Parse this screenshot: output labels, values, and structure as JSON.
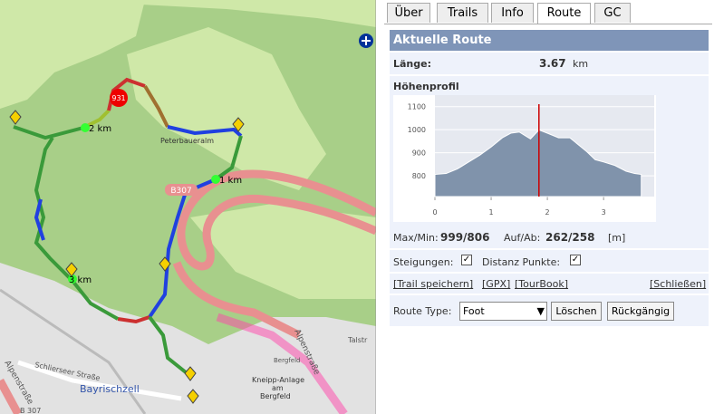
{
  "tabs": [
    "Über",
    "Trails",
    "Info",
    "Route",
    "GC"
  ],
  "panel": {
    "title": "Aktuelle Route",
    "length_label": "Länge:",
    "length_value": "3.67",
    "length_unit": "km",
    "profile_label": "Höhenprofil",
    "stats": {
      "maxmin_label": "Max/Min:",
      "maxmin_value": "999/806",
      "aufab_label": "Auf/Ab:",
      "aufab_value": "262/258",
      "unit": "[m]"
    },
    "checkboxes": [
      "Steigungen:",
      "Distanz Punkte:"
    ],
    "links": [
      "[Trail speichern]",
      "[GPX]",
      "[TourBook]",
      "[Schließen]"
    ],
    "route_type_label": "Route Type:",
    "route_type_value": "Foot",
    "buttons": [
      "Löschen",
      "Rückgängig"
    ]
  },
  "map": {
    "labels": [
      "2 km",
      "1 km",
      "3 km",
      "931",
      "Peterbaueralm",
      "B307",
      "Bayrischzell",
      "Alpenstraße",
      "Schlierseer Straße",
      "Kneipp-Anlage",
      "am",
      "Bergfeld",
      "Bergfeld",
      "Alpenstraße",
      "Talstr",
      "B 307"
    ]
  },
  "chart_data": {
    "type": "area",
    "x": [
      0,
      0.2,
      0.4,
      0.6,
      0.8,
      1.0,
      1.2,
      1.35,
      1.5,
      1.6,
      1.7,
      1.85,
      2.0,
      2.2,
      2.4,
      2.55,
      2.7,
      2.85,
      3.0,
      3.2,
      3.4,
      3.55,
      3.67
    ],
    "series": [
      {
        "color": "#8093ab",
        "values": [
          806,
          810,
          830,
          860,
          890,
          925,
          965,
          985,
          990,
          975,
          960,
          999,
          985,
          965,
          965,
          935,
          905,
          870,
          860,
          845,
          820,
          810,
          806
        ]
      }
    ],
    "marker_x": 1.85,
    "marker_color": "#cc0000",
    "xlim": [
      0,
      3.9
    ],
    "ylim": [
      710,
      1150
    ],
    "xticks": [
      0,
      1,
      2,
      3
    ],
    "yticks": [
      800,
      900,
      1000,
      1100
    ],
    "grid": true
  }
}
